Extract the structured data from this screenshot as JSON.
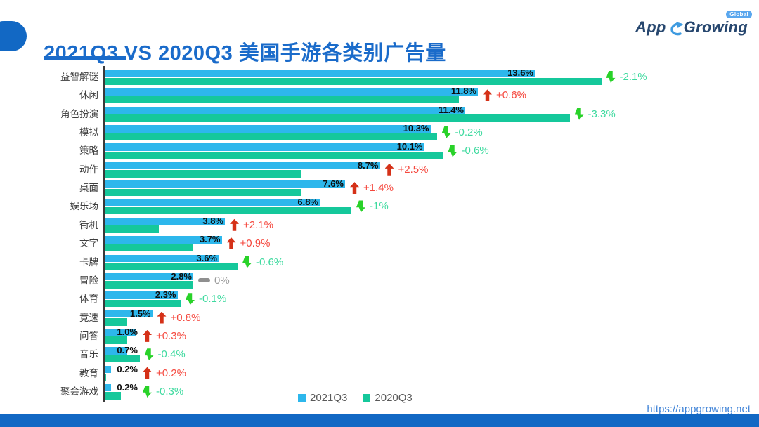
{
  "header": {
    "title": "2021Q3 VS 2020Q3 美国手游各类别广告量",
    "logo": {
      "part1": "App",
      "part2": "Growing",
      "badge": "Global"
    }
  },
  "chart_data": {
    "type": "bar",
    "orientation": "horizontal",
    "title": "2021Q3 VS 2020Q3 美国手游各类别广告量",
    "unit": "%",
    "grid": false,
    "legend_position": "bottom",
    "legend": [
      "2021Q3",
      "2020Q3"
    ],
    "categories": [
      "益智解谜",
      "休闲",
      "角色扮演",
      "模拟",
      "策略",
      "动作",
      "桌面",
      "娱乐场",
      "街机",
      "文字",
      "卡牌",
      "冒险",
      "体育",
      "竞速",
      "问答",
      "音乐",
      "教育",
      "聚会游戏"
    ],
    "series": [
      {
        "name": "2021Q3",
        "color": "#2db7ec",
        "values": [
          13.6,
          11.8,
          11.4,
          10.3,
          10.1,
          8.7,
          7.6,
          6.8,
          3.8,
          3.7,
          3.6,
          2.8,
          2.3,
          1.5,
          1.0,
          0.7,
          0.2,
          0.2
        ]
      },
      {
        "name": "2020Q3",
        "color": "#15c89b",
        "values": [
          15.7,
          11.2,
          14.7,
          10.5,
          10.7,
          6.2,
          6.2,
          7.8,
          1.7,
          2.8,
          4.2,
          2.8,
          2.4,
          0.7,
          0.7,
          1.1,
          0.05,
          0.5
        ]
      }
    ],
    "value_labels": [
      "13.6%",
      "11.8%",
      "11.4%",
      "10.3%",
      "10.1%",
      "8.7%",
      "7.6%",
      "6.8%",
      "3.8%",
      "3.7%",
      "3.6%",
      "2.8%",
      "2.3%",
      "1.5%",
      "1.0%",
      "0.7%",
      "0.2%",
      "0.2%"
    ],
    "changes": [
      {
        "label": "-2.1%",
        "direction": "down"
      },
      {
        "label": "+0.6%",
        "direction": "up"
      },
      {
        "label": "-3.3%",
        "direction": "down"
      },
      {
        "label": "-0.2%",
        "direction": "down"
      },
      {
        "label": "-0.6%",
        "direction": "down"
      },
      {
        "label": "+2.5%",
        "direction": "up"
      },
      {
        "label": "+1.4%",
        "direction": "up"
      },
      {
        "label": "-1%",
        "direction": "down"
      },
      {
        "label": "+2.1%",
        "direction": "up"
      },
      {
        "label": "+0.9%",
        "direction": "up"
      },
      {
        "label": "-0.6%",
        "direction": "down"
      },
      {
        "label": "0%",
        "direction": "flat"
      },
      {
        "label": "-0.1%",
        "direction": "down"
      },
      {
        "label": "+0.8%",
        "direction": "up"
      },
      {
        "label": "+0.3%",
        "direction": "up"
      },
      {
        "label": "-0.4%",
        "direction": "down"
      },
      {
        "label": "+0.2%",
        "direction": "up"
      },
      {
        "label": "-0.3%",
        "direction": "down"
      }
    ],
    "xlim": [
      0,
      16
    ]
  },
  "legend": {
    "item1": "2021Q3",
    "item2": "2020Q3"
  },
  "footer": {
    "url": "https://appgrowing.net"
  },
  "colors": {
    "title_blue": "#1a6bca",
    "bar_2021q3": "#2db7ec",
    "bar_2020q3": "#15c89b",
    "up_arrow_red": "#d53118",
    "up_text_red": "#f5473d",
    "down_arrow_green": "#29d229",
    "down_text_green": "#3eda9f",
    "flat_gray": "#8f8f8f",
    "footer_band_blue": "#1268c4",
    "url_blue": "#4285d8"
  }
}
